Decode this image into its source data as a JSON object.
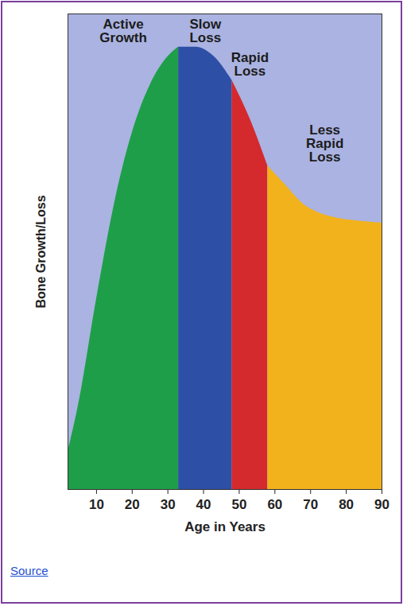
{
  "chart_data": {
    "type": "area",
    "xlabel": "Age in Years",
    "ylabel": "Bone Growth/Loss",
    "caption": "Source",
    "x": [
      2,
      5,
      10,
      15,
      20,
      25,
      30,
      33,
      38,
      43,
      48,
      53,
      58,
      63,
      68,
      73,
      78,
      83,
      90
    ],
    "series": [
      {
        "name": "Active Growth",
        "color": "#1f9e4a",
        "values": [
          8,
          18,
          40,
          60,
          75,
          85,
          91,
          93,
          null,
          null,
          null,
          null,
          null,
          null,
          null,
          null,
          null,
          null,
          null
        ]
      },
      {
        "name": "Slow Loss",
        "color": "#2e4fa6",
        "values": [
          null,
          null,
          null,
          null,
          null,
          null,
          null,
          93,
          93,
          91,
          86,
          null,
          null,
          null,
          null,
          null,
          null,
          null,
          null
        ]
      },
      {
        "name": "Rapid Loss",
        "color": "#d42a2e",
        "values": [
          null,
          null,
          null,
          null,
          null,
          null,
          null,
          null,
          null,
          null,
          86,
          78,
          68,
          null,
          null,
          null,
          null,
          null,
          null
        ]
      },
      {
        "name": "Less Rapid Loss",
        "color": "#f2b21c",
        "values": [
          null,
          null,
          null,
          null,
          null,
          null,
          null,
          null,
          null,
          null,
          null,
          null,
          68,
          64,
          60,
          58,
          57,
          56.5,
          56
        ]
      }
    ],
    "xlim": [
      2,
      90
    ],
    "xticks": [
      10,
      20,
      30,
      40,
      50,
      60,
      70,
      80,
      90
    ],
    "ylim": [
      0,
      100
    ],
    "yticks": [],
    "tick_labels": "x",
    "grid": false
  }
}
